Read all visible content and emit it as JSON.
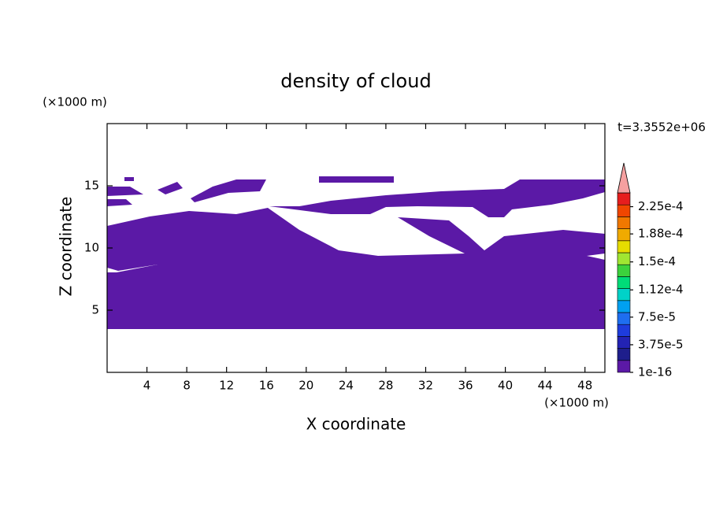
{
  "chart_data": {
    "type": "contour",
    "title": "density of cloud",
    "x_label": "X coordinate",
    "y_label": "Z coordinate",
    "x_unit": "(×1000 m)",
    "y_unit": "(×1000 m)",
    "annotation": "t=3.3552e+06",
    "xlim": [
      0,
      50
    ],
    "ylim": [
      0,
      20
    ],
    "xticks": [
      4,
      8,
      12,
      16,
      20,
      24,
      28,
      32,
      36,
      40,
      44,
      48
    ],
    "yticks": [
      5,
      10,
      15
    ],
    "colorbar": {
      "lim": [
        1e-16,
        0.00024375
      ],
      "colors": [
        "#5b19a6",
        "#1e1e8c",
        "#2323b4",
        "#1e3cdc",
        "#1e6ef0",
        "#00a0f0",
        "#00d2c8",
        "#00dc78",
        "#3cd23c",
        "#a0e632",
        "#e6dc00",
        "#f0aa00",
        "#f07800",
        "#f04600",
        "#e61e1e"
      ],
      "over_color": "#f5a0a0",
      "ticks": [
        {
          "value": 1e-16,
          "label": "1e-16"
        },
        {
          "value": 3.75e-05,
          "label": "3.75e-5"
        },
        {
          "value": 7.5e-05,
          "label": "7.5e-5"
        },
        {
          "value": 0.000112,
          "label": "1.12e-4"
        },
        {
          "value": 0.00015,
          "label": "1.5e-4"
        },
        {
          "value": 0.000188,
          "label": "1.88e-4"
        },
        {
          "value": 0.000225,
          "label": "2.25e-4"
        }
      ]
    }
  }
}
